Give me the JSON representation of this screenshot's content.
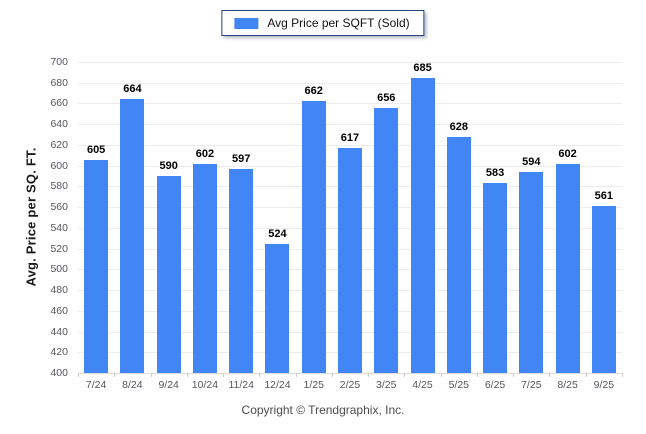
{
  "legend": {
    "label": "Avg Price per SQFT (Sold)",
    "swatch_color": "#4285f4"
  },
  "footer": {
    "copyright": "Copyright © Trendgraphix, Inc."
  },
  "chart_data": {
    "type": "bar",
    "title": "",
    "xlabel": "",
    "ylabel": "Avg. Price per SQ. FT.",
    "categories": [
      "7/24",
      "8/24",
      "9/24",
      "10/24",
      "11/24",
      "12/24",
      "1/25",
      "2/25",
      "3/25",
      "4/25",
      "5/25",
      "6/25",
      "7/25",
      "8/25",
      "9/25"
    ],
    "series": [
      {
        "name": "Avg Price per SQFT (Sold)",
        "values": [
          605,
          664,
          590,
          602,
          597,
          524,
          662,
          617,
          656,
          685,
          628,
          583,
          594,
          602,
          561
        ]
      }
    ],
    "ylim": [
      400,
      700
    ],
    "ytick_step": 20,
    "bar_color": "#4285f4",
    "grid": true,
    "value_labels": true,
    "legend_position": "top-center"
  }
}
